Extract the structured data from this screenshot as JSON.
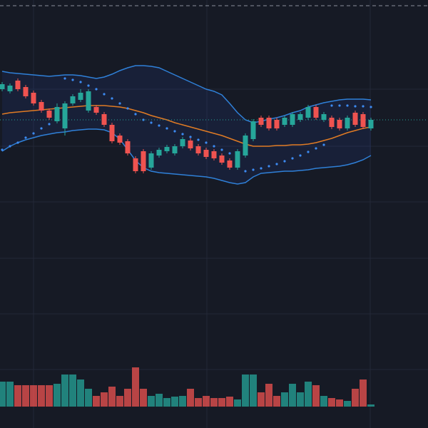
{
  "chart_data": {
    "type": "candlestick",
    "ylim": [
      0,
      600
    ],
    "up_color": "#26a69a",
    "down_color": "#ef5350",
    "open": [
      475,
      472,
      487,
      478,
      470,
      457,
      445,
      430,
      420,
      455,
      460,
      445,
      450,
      440,
      425,
      410,
      402,
      378,
      388,
      365,
      382,
      388,
      385,
      395,
      403,
      395,
      390,
      388,
      382,
      375,
      365,
      382,
      405,
      435,
      435,
      432,
      425,
      425,
      432,
      435,
      450,
      432,
      435,
      432,
      420,
      442,
      440,
      420
    ],
    "high": [
      485,
      483,
      490,
      481,
      473,
      460,
      448,
      455,
      458,
      468,
      475,
      475,
      453,
      443,
      428,
      413,
      405,
      381,
      391,
      388,
      393,
      397,
      398,
      408,
      406,
      398,
      393,
      391,
      385,
      378,
      391,
      413,
      433,
      438,
      438,
      435,
      438,
      443,
      443,
      453,
      453,
      443,
      438,
      435,
      438,
      445,
      443,
      435
    ],
    "low": [
      472,
      469,
      472,
      462,
      452,
      442,
      432,
      427,
      410,
      452,
      457,
      442,
      439,
      422,
      399,
      397,
      382,
      357,
      357,
      362,
      379,
      385,
      382,
      392,
      389,
      382,
      377,
      375,
      369,
      362,
      362,
      379,
      402,
      422,
      417,
      417,
      422,
      422,
      429,
      432,
      432,
      429,
      419,
      417,
      417,
      422,
      419,
      417
    ],
    "close": [
      482,
      480,
      475,
      465,
      455,
      445,
      435,
      450,
      455,
      465,
      470,
      472,
      442,
      425,
      402,
      400,
      385,
      360,
      360,
      385,
      390,
      394,
      395,
      405,
      392,
      385,
      380,
      378,
      372,
      365,
      388,
      410,
      430,
      425,
      420,
      420,
      435,
      440,
      440,
      450,
      435,
      440,
      422,
      420,
      435,
      425,
      422,
      432
    ],
    "bands": {
      "color": "#2f80d8",
      "middle_color": "#e07b24",
      "fill": "rgba(41,98,255,0.09)",
      "upper": [
        500,
        498,
        497,
        496,
        495,
        494,
        493,
        494,
        495,
        495,
        494,
        492,
        490,
        492,
        496,
        501,
        505,
        508,
        508,
        507,
        505,
        500,
        495,
        490,
        485,
        480,
        475,
        472,
        467,
        455,
        442,
        432,
        428,
        430,
        433,
        435,
        438,
        442,
        445,
        450,
        453,
        456,
        458,
        460,
        461,
        461,
        461,
        460
      ],
      "middle": [
        440,
        442,
        443,
        444,
        445,
        446,
        447,
        448,
        449,
        450,
        451,
        452,
        452,
        452,
        451,
        450,
        448,
        445,
        442,
        438,
        435,
        432,
        428,
        425,
        422,
        419,
        416,
        413,
        410,
        406,
        402,
        398,
        395,
        395,
        395,
        396,
        396,
        397,
        397,
        398,
        400,
        403,
        406,
        410,
        414,
        417,
        420,
        422
      ],
      "lower": [
        388,
        395,
        400,
        404,
        407,
        410,
        412,
        414,
        415,
        417,
        418,
        419,
        419,
        418,
        414,
        405,
        390,
        375,
        365,
        360,
        358,
        357,
        356,
        355,
        354,
        353,
        352,
        350,
        347,
        344,
        342,
        344,
        352,
        357,
        358,
        359,
        360,
        360,
        361,
        362,
        364,
        365,
        366,
        367,
        369,
        372,
        376,
        382
      ]
    },
    "sar": {
      "color": "#3d8bf2",
      "values": [
        390,
        395,
        400,
        407,
        413,
        420,
        426,
        432,
        490,
        488,
        485,
        480,
        475,
        468,
        462,
        455,
        448,
        440,
        432,
        428,
        424,
        420,
        416,
        412,
        408,
        404,
        400,
        395,
        390,
        385,
        380,
        360,
        362,
        364,
        367,
        370,
        374,
        378,
        382,
        387,
        392,
        397,
        452,
        452,
        452,
        451,
        451,
        450
      ]
    },
    "volume": {
      "vlim": [
        0,
        100
      ],
      "values": [
        35,
        35,
        30,
        30,
        30,
        30,
        30,
        32,
        45,
        45,
        38,
        25,
        15,
        20,
        28,
        15,
        25,
        55,
        25,
        15,
        18,
        12,
        14,
        15,
        25,
        12,
        15,
        12,
        12,
        14,
        10,
        45,
        45,
        20,
        32,
        15,
        20,
        32,
        20,
        35,
        30,
        15,
        12,
        10,
        8,
        25,
        38,
        3
      ]
    }
  }
}
